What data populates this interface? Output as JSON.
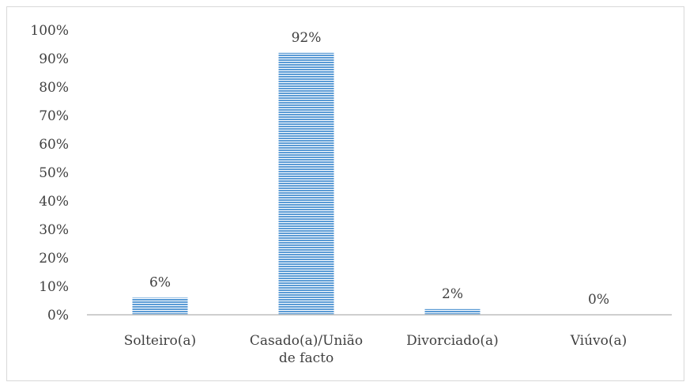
{
  "chart_data": {
    "type": "bar",
    "categories": [
      [
        "Solteiro(a)"
      ],
      [
        "Casado(a)/União",
        "de facto"
      ],
      [
        "Divorciado(a)"
      ],
      [
        "Viúvo(a)"
      ]
    ],
    "values": [
      6,
      92,
      2,
      0
    ],
    "data_labels": [
      "6%",
      "92%",
      "2%",
      "0%"
    ],
    "y_ticks": [
      "0%",
      "10%",
      "20%",
      "30%",
      "40%",
      "50%",
      "60%",
      "70%",
      "80%",
      "90%",
      "100%"
    ],
    "ylim": [
      0,
      100
    ],
    "title": "",
    "xlabel": "",
    "ylabel": "",
    "grid": false,
    "legend": "none",
    "bar_color": "#5b9bd5",
    "bar_pattern": "horizontal-stripes",
    "axis_color": "#bfbfbf",
    "text_color": "#404040"
  }
}
